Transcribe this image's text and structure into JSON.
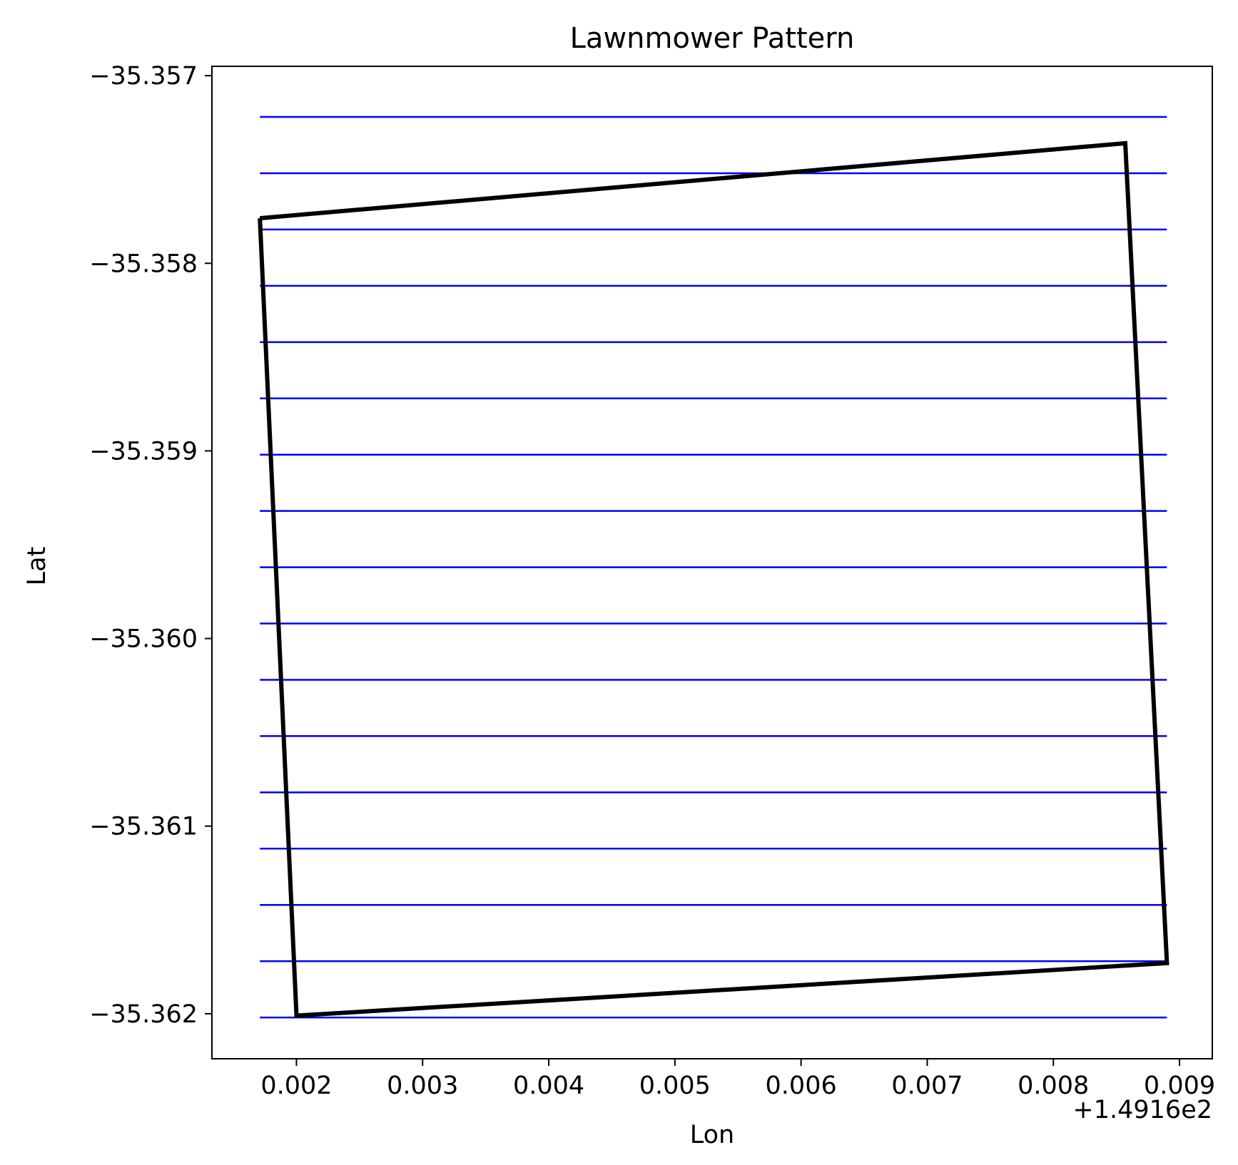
{
  "chart_data": {
    "type": "line",
    "title": "Lawnmower Pattern",
    "xlabel": "Lon",
    "ylabel": "Lat",
    "x_offset_label": "+1.4916e2",
    "xlim": [
      0.00133,
      0.00926
    ],
    "ylim": [
      -35.36224,
      -35.35695
    ],
    "xticks": [
      0.002,
      0.003,
      0.004,
      0.005,
      0.006,
      0.007,
      0.008,
      0.009
    ],
    "xtick_labels": [
      "0.002",
      "0.003",
      "0.004",
      "0.005",
      "0.006",
      "0.007",
      "0.008",
      "0.009"
    ],
    "yticks": [
      -35.357,
      -35.358,
      -35.359,
      -35.36,
      -35.361,
      -35.362
    ],
    "ytick_labels": [
      "−35.357",
      "−35.358",
      "−35.359",
      "−35.360",
      "−35.361",
      "−35.362"
    ],
    "grid": false,
    "series": [
      {
        "kind": "polygon",
        "color": "#000000",
        "points": [
          [
            0.00171,
            -35.35776
          ],
          [
            0.00857,
            -35.35736
          ],
          [
            0.0089,
            -35.36173
          ],
          [
            0.002,
            -35.36201
          ],
          [
            0.00171,
            -35.35776
          ]
        ]
      },
      {
        "kind": "sweeps",
        "color": "#0000ff",
        "x_start": 0.00171,
        "x_end": 0.0089,
        "y_values": [
          -35.35722,
          -35.35752,
          -35.35782,
          -35.35812,
          -35.35842,
          -35.35872,
          -35.35902,
          -35.35932,
          -35.35962,
          -35.35992,
          -35.36022,
          -35.36052,
          -35.36082,
          -35.36112,
          -35.36142,
          -35.36172,
          -35.36202
        ]
      }
    ]
  }
}
